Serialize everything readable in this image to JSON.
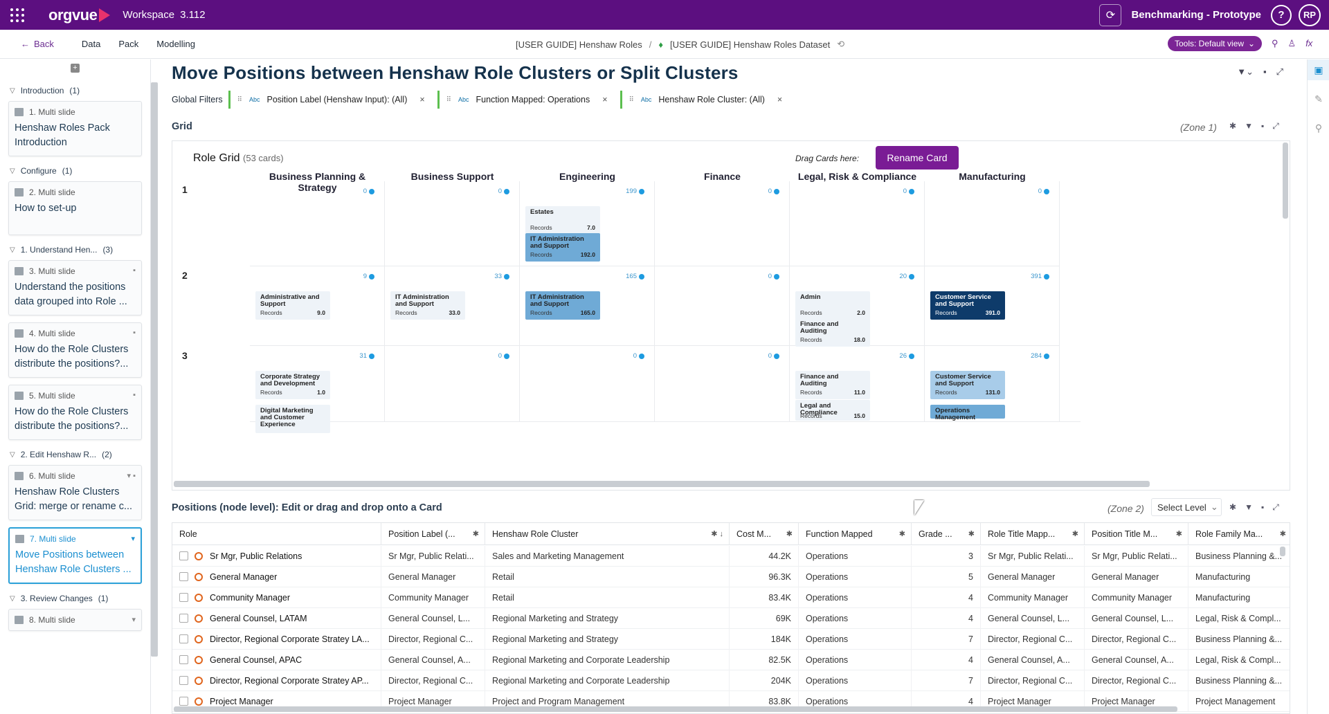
{
  "topbar": {
    "logo": "orgvue",
    "workspace": "Workspace",
    "version": "3.112",
    "project": "Benchmarking - Prototype",
    "help": "?",
    "user": "RP"
  },
  "subnav": {
    "back": "Back",
    "links": [
      "Data",
      "Pack",
      "Modelling"
    ],
    "breadcrumb_1": "[USER GUIDE] Henshaw Roles",
    "breadcrumb_sep": "/",
    "breadcrumb_2": "[USER GUIDE] Henshaw Roles Dataset",
    "tools": "Tools: Default view"
  },
  "sidebar": {
    "sections": [
      {
        "label": "Introduction",
        "count": "(1)"
      },
      {
        "label": "Configure",
        "count": "(1)"
      },
      {
        "label": "1. Understand Hen...",
        "count": "(3)"
      },
      {
        "label": "2. Edit Henshaw R...",
        "count": "(2)"
      },
      {
        "label": "3. Review Changes",
        "count": "(1)"
      }
    ],
    "cards": [
      {
        "meta": "1. Multi slide",
        "title": "Henshaw Roles Pack Introduction"
      },
      {
        "meta": "2. Multi slide",
        "title": "How to set-up"
      },
      {
        "meta": "3. Multi slide",
        "title": "Understand the positions data grouped into Role ..."
      },
      {
        "meta": "4. Multi slide",
        "title": "How do the Role Clusters distribute the positions?..."
      },
      {
        "meta": "5. Multi slide",
        "title": "How do the Role Clusters distribute the positions?..."
      },
      {
        "meta": "6. Multi slide",
        "title": "Henshaw Role Clusters Grid: merge or rename c..."
      },
      {
        "meta": "7. Multi slide",
        "title": "Move Positions between Henshaw Role Clusters ..."
      },
      {
        "meta": "8. Multi slide",
        "title": ""
      }
    ]
  },
  "page": {
    "title": "Move Positions between Henshaw Role Clusters or Split Clusters",
    "global_filters": "Global Filters"
  },
  "filters": [
    {
      "abc": "Abc",
      "label": "Position Label (Henshaw Input): (All)"
    },
    {
      "abc": "Abc",
      "label": "Function Mapped: Operations"
    },
    {
      "abc": "Abc",
      "label": "Henshaw Role Cluster: (All)"
    }
  ],
  "grid": {
    "zone_title": "Grid",
    "zone_label": "(Zone 1)",
    "title": "Role Grid",
    "count": "(53 cards)",
    "drag_hint": "Drag Cards here:",
    "rename": "Rename Card",
    "columns": [
      "Business Planning & Strategy",
      "Business Support",
      "Engineering",
      "Finance",
      "Legal, Risk & Compliance",
      "Manufacturing"
    ],
    "rows": [
      "1",
      "2",
      "3"
    ],
    "counts": [
      [
        "0",
        "0",
        "199",
        "0",
        "0",
        "0"
      ],
      [
        "9",
        "33",
        "165",
        "0",
        "20",
        "391"
      ],
      [
        "31",
        "0",
        "0",
        "0",
        "26",
        "284"
      ]
    ],
    "records": "Records",
    "cards": [
      {
        "name": "Estates",
        "value": "7.0"
      },
      {
        "name": "IT Administration and Support",
        "value": "192.0"
      },
      {
        "name": "Administrative and Support",
        "value": "9.0"
      },
      {
        "name": "IT Administration and Support",
        "value": "33.0"
      },
      {
        "name": "IT Administration and Support",
        "value": "165.0"
      },
      {
        "name": "Admin",
        "value": "2.0"
      },
      {
        "name": "Finance and Auditing",
        "value": "18.0"
      },
      {
        "name": "Customer Service and Support",
        "value": "391.0"
      },
      {
        "name": "Corporate Strategy and Development",
        "value": "1.0"
      },
      {
        "name": "Digital Marketing and Customer Experience",
        "value": ""
      },
      {
        "name": "Finance and Auditing",
        "value": "11.0"
      },
      {
        "name": "Legal and Compliance",
        "value": "15.0"
      },
      {
        "name": "Customer Service and Support",
        "value": "131.0"
      },
      {
        "name": "Operations Management",
        "value": ""
      }
    ]
  },
  "table": {
    "zone_title": "Positions (node level): Edit or drag and drop onto a Card",
    "zone_label": "(Zone 2)",
    "select_level": "Select Level",
    "headers": [
      "Role",
      "Position Label (...",
      "Henshaw Role Cluster",
      "Cost M...",
      "Function Mapped",
      "Grade ...",
      "Role Title Mapp...",
      "Position Title M...",
      "Role Family Ma..."
    ],
    "rows": [
      [
        "Sr Mgr, Public Relations",
        "Sr Mgr, Public Relati...",
        "Sales and Marketing Management",
        "44.2K",
        "Operations",
        "3",
        "Sr Mgr, Public Relati...",
        "Sr Mgr, Public Relati...",
        "Business Planning &..."
      ],
      [
        "General Manager",
        "General Manager",
        "Retail",
        "96.3K",
        "Operations",
        "5",
        "General Manager",
        "General Manager",
        "Manufacturing"
      ],
      [
        "Community Manager",
        "Community Manager",
        "Retail",
        "83.4K",
        "Operations",
        "4",
        "Community Manager",
        "Community Manager",
        "Manufacturing"
      ],
      [
        "General Counsel, LATAM",
        "General Counsel, L...",
        "Regional Marketing and Strategy",
        "69K",
        "Operations",
        "4",
        "General Counsel, L...",
        "General Counsel, L...",
        "Legal, Risk & Compl..."
      ],
      [
        "Director, Regional Corporate Stratey LA...",
        "Director, Regional C...",
        "Regional Marketing and Strategy",
        "184K",
        "Operations",
        "7",
        "Director, Regional C...",
        "Director, Regional C...",
        "Business Planning &..."
      ],
      [
        "General Counsel, APAC",
        "General Counsel, A...",
        "Regional Marketing and Corporate Leadership",
        "82.5K",
        "Operations",
        "4",
        "General Counsel, A...",
        "General Counsel, A...",
        "Legal, Risk & Compl..."
      ],
      [
        "Director, Regional Corporate Stratey AP...",
        "Director, Regional C...",
        "Regional Marketing and Corporate Leadership",
        "204K",
        "Operations",
        "7",
        "Director, Regional C...",
        "Director, Regional C...",
        "Business Planning &..."
      ],
      [
        "Project Manager",
        "Project Manager",
        "Project and Program Management",
        "83.8K",
        "Operations",
        "4",
        "Project Manager",
        "Project Manager",
        "Project Management"
      ]
    ]
  }
}
